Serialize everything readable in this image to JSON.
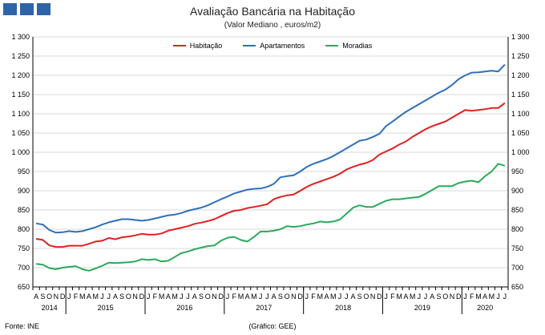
{
  "header": {
    "logo_squares": 3,
    "logo_color": "#2e63a8"
  },
  "chart_data": {
    "type": "line",
    "title": "Avaliação Bancária na Habitação",
    "subtitle": "(Valor Mediano , euros/m2)",
    "xlabel": "",
    "ylabel": "",
    "ylim": [
      650,
      1300
    ],
    "yticks": [
      "650",
      "700",
      "750",
      "800",
      "850",
      "900",
      "950",
      "1 000",
      "1 050",
      "1 100",
      "1 150",
      "1 200",
      "1 250",
      "1 300"
    ],
    "grid": true,
    "legend_position": "top-center",
    "month_labels": [
      "A",
      "S",
      "O",
      "N",
      "D",
      "J",
      "F",
      "M",
      "A",
      "M",
      "J",
      "J",
      "A",
      "S",
      "O",
      "N",
      "D",
      "J",
      "F",
      "M",
      "A",
      "M",
      "J",
      "J",
      "A",
      "S",
      "O",
      "N",
      "D",
      "J",
      "F",
      "M",
      "A",
      "M",
      "J",
      "J",
      "A",
      "S",
      "O",
      "N",
      "D",
      "J",
      "F",
      "M",
      "A",
      "M",
      "J",
      "J",
      "A",
      "S",
      "O",
      "N",
      "D",
      "J",
      "F",
      "M",
      "A",
      "M",
      "J",
      "J",
      "A",
      "S",
      "O",
      "N",
      "D",
      "J",
      "F",
      "M",
      "A",
      "M",
      "J",
      "J"
    ],
    "years": [
      {
        "label": "2014",
        "start": 0,
        "end": 4
      },
      {
        "label": "2015",
        "start": 5,
        "end": 16
      },
      {
        "label": "2016",
        "start": 17,
        "end": 28
      },
      {
        "label": "2017",
        "start": 29,
        "end": 40
      },
      {
        "label": "2018",
        "start": 41,
        "end": 52
      },
      {
        "label": "2019",
        "start": 53,
        "end": 64
      },
      {
        "label": "2020",
        "start": 65,
        "end": 71
      }
    ],
    "series": [
      {
        "name": "Habitação",
        "color": "#e02020",
        "values": [
          775,
          772,
          758,
          754,
          754,
          757,
          757,
          757,
          762,
          768,
          770,
          777,
          774,
          779,
          781,
          784,
          788,
          786,
          786,
          789,
          796,
          800,
          804,
          808,
          814,
          817,
          821,
          826,
          834,
          842,
          848,
          850,
          855,
          858,
          861,
          865,
          878,
          884,
          888,
          890,
          900,
          910,
          918,
          924,
          930,
          936,
          944,
          955,
          962,
          968,
          972,
          980,
          994,
          1002,
          1010,
          1020,
          1028,
          1040,
          1050,
          1060,
          1068,
          1074,
          1080,
          1090,
          1100,
          1110,
          1108,
          1110,
          1112,
          1115,
          1115,
          1128
        ]
      },
      {
        "name": "Apartamentos",
        "color": "#2e6fb8",
        "values": [
          815,
          812,
          798,
          791,
          792,
          795,
          793,
          795,
          800,
          805,
          812,
          818,
          822,
          826,
          826,
          824,
          822,
          824,
          828,
          832,
          836,
          838,
          842,
          848,
          852,
          856,
          862,
          870,
          878,
          885,
          893,
          898,
          903,
          905,
          906,
          910,
          918,
          935,
          938,
          940,
          950,
          962,
          970,
          976,
          982,
          990,
          1000,
          1010,
          1020,
          1030,
          1033,
          1040,
          1048,
          1068,
          1080,
          1093,
          1105,
          1115,
          1125,
          1135,
          1145,
          1155,
          1163,
          1175,
          1190,
          1200,
          1207,
          1208,
          1210,
          1212,
          1210,
          1228
        ]
      },
      {
        "name": "Moradias",
        "color": "#2aaa5a",
        "values": [
          710,
          708,
          699,
          696,
          700,
          702,
          704,
          696,
          692,
          698,
          705,
          713,
          712,
          713,
          714,
          716,
          722,
          720,
          722,
          716,
          718,
          728,
          738,
          742,
          748,
          752,
          756,
          758,
          770,
          778,
          780,
          772,
          768,
          780,
          794,
          794,
          796,
          800,
          808,
          806,
          808,
          812,
          815,
          820,
          818,
          820,
          825,
          840,
          856,
          862,
          858,
          858,
          866,
          874,
          878,
          878,
          880,
          882,
          884,
          892,
          902,
          912,
          912,
          912,
          920,
          924,
          926,
          922,
          938,
          950,
          970,
          965
        ]
      }
    ]
  },
  "footer": {
    "source": "Fonte:  INE",
    "graphic_credit": "(Gráfico:  GEE)"
  }
}
